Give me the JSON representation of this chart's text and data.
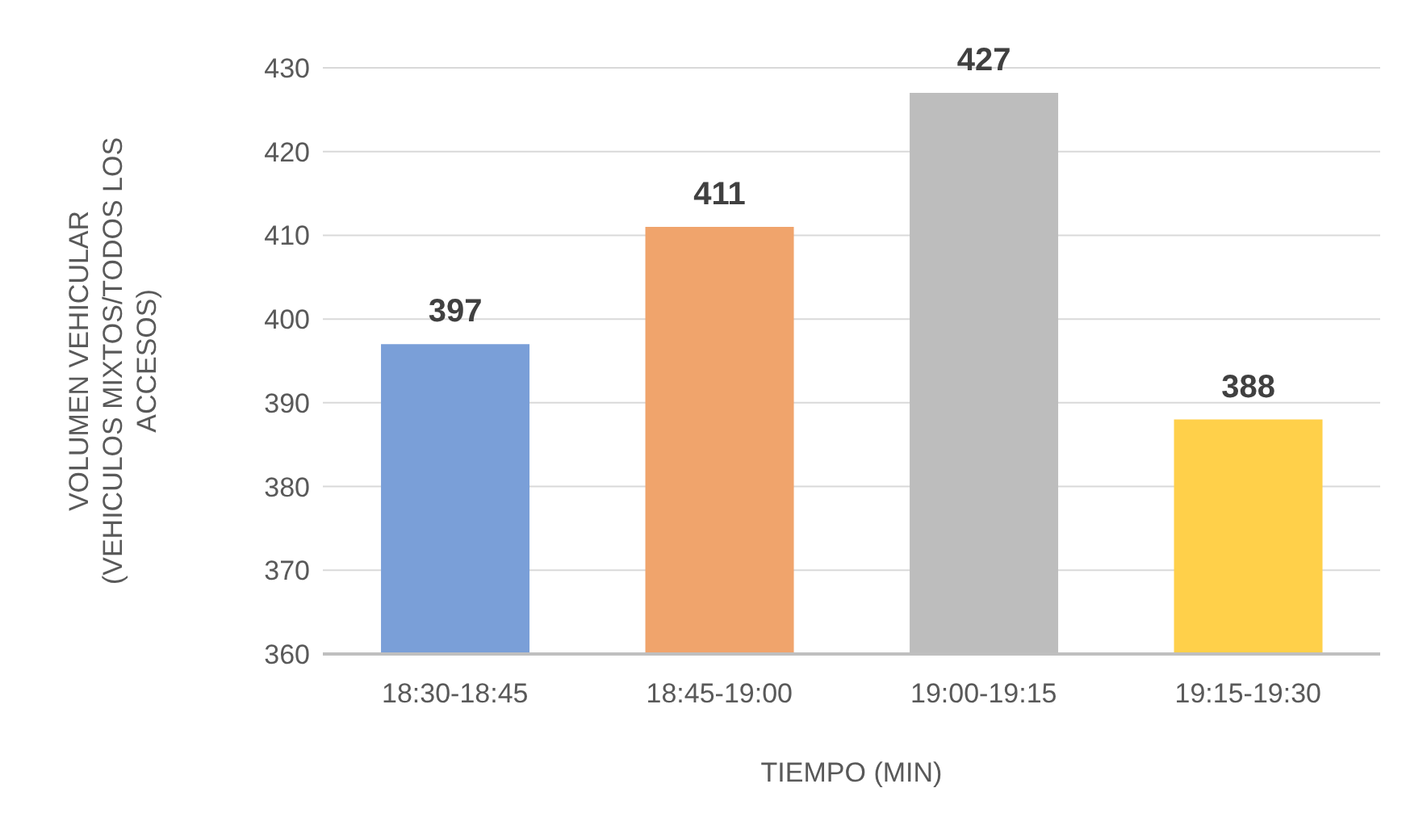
{
  "chart_data": {
    "type": "bar",
    "categories": [
      "18:30-18:45",
      "18:45-19:00",
      "19:00-19:15",
      "19:15-19:30"
    ],
    "values": [
      397,
      411,
      427,
      388
    ],
    "colors": [
      "#7a9fd8",
      "#f0a46c",
      "#bdbdbd",
      "#ffd04a"
    ],
    "xlabel": "TIEMPO (MIN)",
    "ylabel": "VOLUMEN VEHICULAR\n(VEHICULOS MIXTOS/TODOS LOS\nACCESOS)",
    "ylim": [
      360,
      430
    ],
    "yticks": [
      360,
      370,
      380,
      390,
      400,
      410,
      420,
      430
    ],
    "grid": "y",
    "data_labels": true
  }
}
